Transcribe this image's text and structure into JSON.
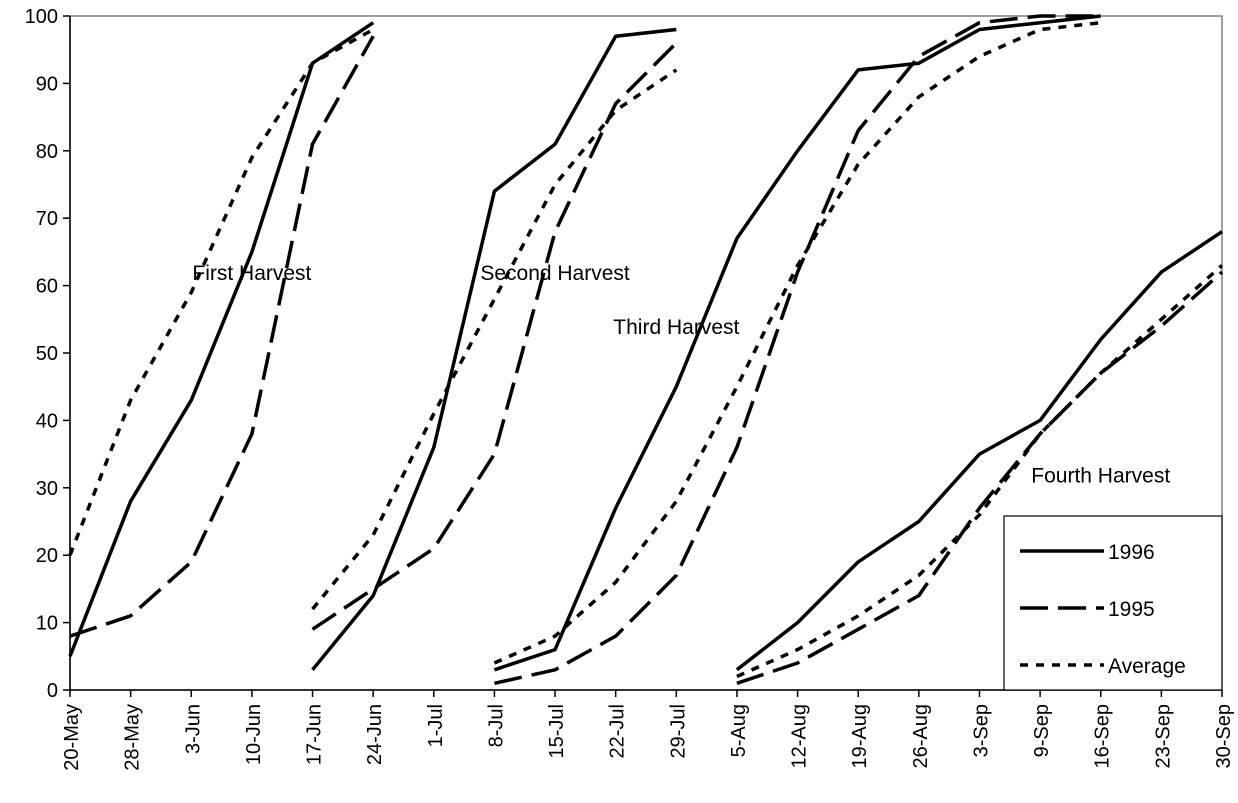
{
  "chart_data": {
    "type": "line",
    "x": [
      "20-May",
      "28-May",
      "3-Jun",
      "10-Jun",
      "17-Jun",
      "24-Jun",
      "1-Jul",
      "8-Jul",
      "15-Jul",
      "22-Jul",
      "29-Jul",
      "5-Aug",
      "12-Aug",
      "19-Aug",
      "26-Aug",
      "3-Sep",
      "9-Sep",
      "16-Sep",
      "23-Sep",
      "30-Sep"
    ],
    "ylim": [
      0,
      100
    ],
    "yticks": [
      0,
      10,
      20,
      30,
      40,
      50,
      60,
      70,
      80,
      90,
      100
    ],
    "grid": false,
    "legend_placement": "bottom-right",
    "series": [
      {
        "name": "1996",
        "style": "solid",
        "segments": [
          [
            [
              "20-May",
              5
            ],
            [
              "28-May",
              28
            ],
            [
              "3-Jun",
              43
            ],
            [
              "10-Jun",
              65
            ],
            [
              "17-Jun",
              93
            ],
            [
              "24-Jun",
              99
            ]
          ],
          [
            [
              "17-Jun",
              3
            ],
            [
              "24-Jun",
              14
            ],
            [
              "1-Jul",
              36
            ],
            [
              "8-Jul",
              74
            ],
            [
              "15-Jul",
              81
            ],
            [
              "22-Jul",
              97
            ],
            [
              "29-Jul",
              98
            ]
          ],
          [
            [
              "8-Jul",
              3
            ],
            [
              "15-Jul",
              6
            ],
            [
              "22-Jul",
              27
            ],
            [
              "29-Jul",
              45
            ],
            [
              "5-Aug",
              67
            ],
            [
              "12-Aug",
              80
            ],
            [
              "19-Aug",
              92
            ],
            [
              "26-Aug",
              93
            ],
            [
              "3-Sep",
              98
            ],
            [
              "9-Sep",
              99
            ],
            [
              "16-Sep",
              100
            ]
          ],
          [
            [
              "5-Aug",
              3
            ],
            [
              "12-Aug",
              10
            ],
            [
              "19-Aug",
              19
            ],
            [
              "26-Aug",
              25
            ],
            [
              "3-Sep",
              35
            ],
            [
              "9-Sep",
              40
            ],
            [
              "16-Sep",
              52
            ],
            [
              "23-Sep",
              62
            ],
            [
              "30-Sep",
              68
            ]
          ]
        ]
      },
      {
        "name": "1995",
        "style": "dashed",
        "segments": [
          [
            [
              "20-May",
              8
            ],
            [
              "28-May",
              11
            ],
            [
              "3-Jun",
              19
            ],
            [
              "10-Jun",
              38
            ],
            [
              "17-Jun",
              81
            ],
            [
              "24-Jun",
              97
            ]
          ],
          [
            [
              "17-Jun",
              9
            ],
            [
              "24-Jun",
              15
            ],
            [
              "1-Jul",
              21
            ],
            [
              "8-Jul",
              35
            ],
            [
              "15-Jul",
              68
            ],
            [
              "22-Jul",
              87
            ],
            [
              "29-Jul",
              96
            ]
          ],
          [
            [
              "8-Jul",
              1
            ],
            [
              "15-Jul",
              3
            ],
            [
              "22-Jul",
              8
            ],
            [
              "29-Jul",
              17
            ],
            [
              "5-Aug",
              36
            ],
            [
              "12-Aug",
              62
            ],
            [
              "19-Aug",
              83
            ],
            [
              "26-Aug",
              94
            ],
            [
              "3-Sep",
              99
            ],
            [
              "9-Sep",
              100
            ],
            [
              "16-Sep",
              100
            ]
          ],
          [
            [
              "5-Aug",
              1
            ],
            [
              "12-Aug",
              4
            ],
            [
              "19-Aug",
              9
            ],
            [
              "26-Aug",
              14
            ],
            [
              "3-Sep",
              27
            ],
            [
              "9-Sep",
              38
            ],
            [
              "16-Sep",
              47
            ],
            [
              "23-Sep",
              54
            ],
            [
              "30-Sep",
              62
            ]
          ]
        ]
      },
      {
        "name": "Average",
        "style": "dotted",
        "segments": [
          [
            [
              "20-May",
              20
            ],
            [
              "28-May",
              43
            ],
            [
              "3-Jun",
              59
            ],
            [
              "10-Jun",
              79
            ],
            [
              "17-Jun",
              93
            ],
            [
              "24-Jun",
              98
            ]
          ],
          [
            [
              "17-Jun",
              12
            ],
            [
              "24-Jun",
              23
            ],
            [
              "1-Jul",
              41
            ],
            [
              "8-Jul",
              58
            ],
            [
              "15-Jul",
              75
            ],
            [
              "22-Jul",
              86
            ],
            [
              "29-Jul",
              92
            ]
          ],
          [
            [
              "8-Jul",
              4
            ],
            [
              "15-Jul",
              8
            ],
            [
              "22-Jul",
              16
            ],
            [
              "29-Jul",
              28
            ],
            [
              "5-Aug",
              45
            ],
            [
              "12-Aug",
              63
            ],
            [
              "19-Aug",
              78
            ],
            [
              "26-Aug",
              88
            ],
            [
              "3-Sep",
              94
            ],
            [
              "9-Sep",
              98
            ],
            [
              "16-Sep",
              99
            ]
          ],
          [
            [
              "5-Aug",
              2
            ],
            [
              "12-Aug",
              6
            ],
            [
              "19-Aug",
              11
            ],
            [
              "26-Aug",
              17
            ],
            [
              "3-Sep",
              26
            ],
            [
              "9-Sep",
              38
            ],
            [
              "16-Sep",
              47
            ],
            [
              "23-Sep",
              55
            ],
            [
              "30-Sep",
              63
            ]
          ]
        ]
      }
    ],
    "annotations": [
      {
        "text": "First Harvest",
        "at": [
          "10-Jun",
          62
        ]
      },
      {
        "text": "Second Harvest",
        "at": [
          "15-Jul",
          62
        ]
      },
      {
        "text": "Third Harvest",
        "at": [
          "29-Jul",
          54
        ]
      },
      {
        "text": "Fourth Harvest",
        "at": [
          "16-Sep",
          32
        ]
      }
    ]
  }
}
